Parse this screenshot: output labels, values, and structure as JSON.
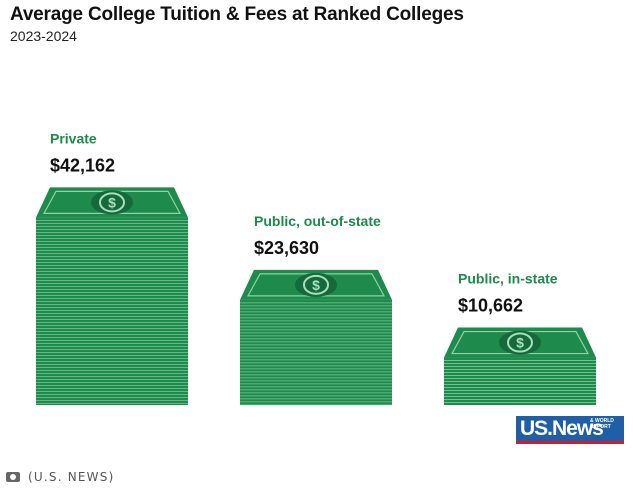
{
  "header": {
    "title": "Average College Tuition & Fees at Ranked Colleges",
    "subtitle": "2023-2024"
  },
  "chart_data": {
    "type": "bar",
    "title": "Average College Tuition & Fees at Ranked Colleges",
    "subtitle": "2023-2024",
    "categories": [
      "Private",
      "Public, out-of-state",
      "Public, in-state"
    ],
    "values": [
      42162,
      23630,
      10662
    ],
    "value_labels": [
      "$42,162",
      "$23,630",
      "$10,662"
    ],
    "bar_style": "stacked money bills",
    "colors": {
      "bill": "#1e8a4c",
      "bill_dark": "#17683a",
      "label": "#1e8a4c"
    }
  },
  "branding": {
    "logo_text": "US.News",
    "logo_subtext": "& WORLD REPORT"
  },
  "credit": {
    "text": "(U.S. NEWS)",
    "icon": "camera-icon"
  }
}
